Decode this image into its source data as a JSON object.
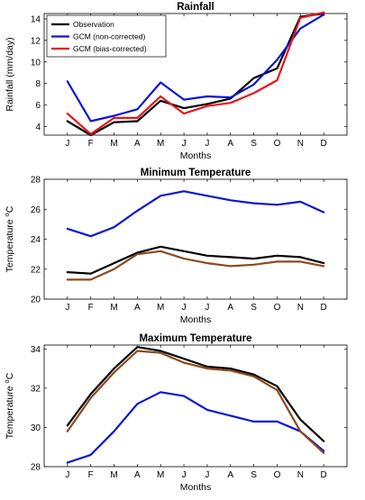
{
  "colors": {
    "observation": "#000000",
    "gcm_raw": "#0a16d6",
    "gcm_bc": "#e8141c",
    "gcm_bc_temp": "#8b4a1e"
  },
  "chart_data": [
    {
      "type": "line",
      "title": "Rainfall",
      "xlabel": "Months",
      "ylabel": "Rainfall (mm/day)",
      "categories": [
        "J",
        "F",
        "M",
        "A",
        "M",
        "J",
        "J",
        "A",
        "S",
        "O",
        "N",
        "D"
      ],
      "ylim": [
        3.2,
        14.5
      ],
      "yticks": [
        4,
        6,
        8,
        10,
        12,
        14
      ],
      "legend": "top-left",
      "series": [
        {
          "name": "Observation",
          "color": "observation",
          "values": [
            4.5,
            3.2,
            4.4,
            4.5,
            6.4,
            5.7,
            6.1,
            6.6,
            8.5,
            9.4,
            14.2,
            14.5
          ]
        },
        {
          "name": "GCM (non-corrected)",
          "color": "gcm_raw",
          "values": [
            8.2,
            4.5,
            5.0,
            5.6,
            8.1,
            6.5,
            6.8,
            6.7,
            7.9,
            10.2,
            13.1,
            14.4
          ]
        },
        {
          "name": "GCM (bias-corrected)",
          "color": "gcm_bc",
          "values": [
            5.2,
            3.3,
            4.8,
            4.8,
            6.8,
            5.2,
            5.9,
            6.2,
            7.1,
            8.3,
            14.1,
            14.6
          ]
        }
      ]
    },
    {
      "type": "line",
      "title": "Minimum Temperature",
      "xlabel": "Months",
      "ylabel": "Temperature",
      "ylabel_unit": "oC",
      "categories": [
        "J",
        "F",
        "M",
        "A",
        "M",
        "J",
        "J",
        "A",
        "S",
        "O",
        "N",
        "D"
      ],
      "ylim": [
        20,
        28
      ],
      "yticks": [
        20,
        22,
        24,
        26,
        28
      ],
      "series": [
        {
          "color": "observation",
          "values": [
            21.8,
            21.7,
            22.4,
            23.1,
            23.5,
            23.2,
            22.9,
            22.8,
            22.7,
            22.9,
            22.8,
            22.4
          ]
        },
        {
          "color": "gcm_raw",
          "values": [
            24.7,
            24.2,
            24.8,
            25.9,
            26.9,
            27.2,
            26.9,
            26.6,
            26.4,
            26.3,
            26.5,
            25.8
          ]
        },
        {
          "color": "gcm_bc_temp",
          "values": [
            21.3,
            21.3,
            22.0,
            23.0,
            23.2,
            22.7,
            22.4,
            22.2,
            22.3,
            22.5,
            22.5,
            22.2
          ]
        }
      ]
    },
    {
      "type": "line",
      "title": "Maximum Temperature",
      "xlabel": "Months",
      "ylabel": "Temperature",
      "ylabel_unit": "oC",
      "categories": [
        "J",
        "F",
        "M",
        "A",
        "M",
        "J",
        "J",
        "A",
        "S",
        "O",
        "N",
        "D"
      ],
      "ylim": [
        28,
        34.2
      ],
      "yticks": [
        28,
        30,
        32,
        34
      ],
      "series": [
        {
          "color": "observation",
          "values": [
            30.1,
            31.7,
            33.0,
            34.1,
            33.9,
            33.5,
            33.1,
            33.0,
            32.7,
            32.1,
            30.4,
            29.3
          ]
        },
        {
          "color": "gcm_raw",
          "values": [
            28.2,
            28.6,
            29.8,
            31.2,
            31.8,
            31.6,
            30.9,
            30.6,
            30.3,
            30.3,
            29.8,
            28.8
          ]
        },
        {
          "color": "gcm_bc_temp",
          "values": [
            29.8,
            31.5,
            32.8,
            33.9,
            33.8,
            33.3,
            33.0,
            32.9,
            32.6,
            31.9,
            29.8,
            28.7
          ]
        }
      ]
    }
  ]
}
